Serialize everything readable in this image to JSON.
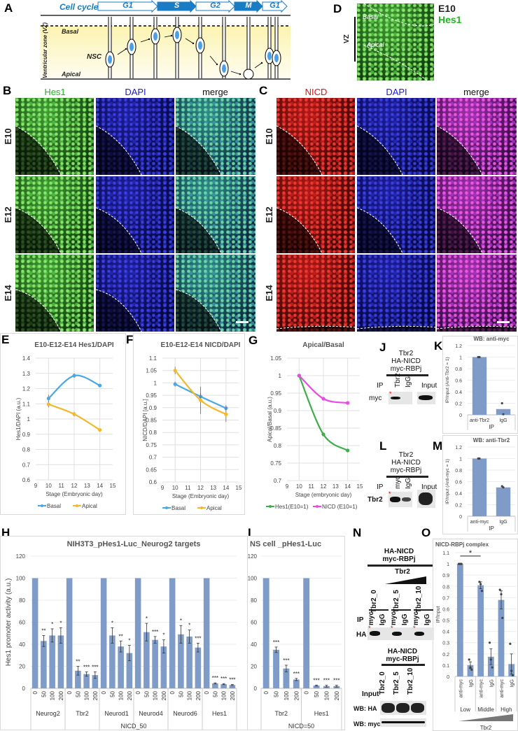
{
  "panel_labels": {
    "a": "A",
    "b": "B",
    "c": "C",
    "d": "D",
    "e": "E",
    "f": "F",
    "g": "G",
    "h": "H",
    "i": "I",
    "j": "J",
    "k": "K",
    "l": "L",
    "m": "M",
    "n": "N",
    "o": "O"
  },
  "a": {
    "cell_cycle": "Cell cycle",
    "phases": [
      "G1",
      "S",
      "G2",
      "M",
      "G1"
    ],
    "basal": "Basal",
    "apical": "Apical",
    "vz": "Ventricular zone (VZ)",
    "nsc": "NSC"
  },
  "d": {
    "vz": "VZ",
    "basal": "Basal",
    "apical": "Apical",
    "stage": "E10",
    "marker": "Hes1",
    "marker_color": "#22b422"
  },
  "b": {
    "headers": [
      "Hes1",
      "DAPI",
      "merge"
    ],
    "rows": [
      "E10",
      "E12",
      "E14"
    ],
    "header_colors": [
      "#22b422",
      "#1a1ad0",
      "#111111"
    ]
  },
  "c": {
    "headers": [
      "NICD",
      "DAPI",
      "merge"
    ],
    "rows": [
      "E10",
      "E12",
      "E14"
    ],
    "header_colors": [
      "#e01010",
      "#1a1ad0",
      "#111111"
    ]
  },
  "j": {
    "header": [
      "Tbr2",
      "HA-NICD",
      "myc-RBPj"
    ],
    "ip": "IP",
    "lanes": [
      "Tbr2",
      "IgG",
      "Input"
    ],
    "row": "myc",
    "mark": "*"
  },
  "l": {
    "header": [
      "Tbr2",
      "HA-NICD",
      "myc-RBPj"
    ],
    "ip": "IP",
    "lanes": [
      "myc",
      "IgG",
      "Input"
    ],
    "row": "Tbr2",
    "mark": "*"
  },
  "n": {
    "top_header": [
      "HA-NICD",
      "myc-RBPj"
    ],
    "gradient_label": "Tbr2",
    "conditions": [
      "Tbr2_0",
      "Tbr2_5",
      "Tbr2_10"
    ],
    "ip": "IP",
    "ip_lanes": [
      "myc",
      "IgG",
      "myc",
      "IgG",
      "myc",
      "IgG"
    ],
    "row": "HA",
    "mark": "*",
    "bottom_header": [
      "HA-NICD",
      "myc-RBPj"
    ],
    "input": "Input",
    "input_lanes": [
      "Tbr2_0",
      "Tbr2_5",
      "Tbr2_10"
    ],
    "wb_rows": [
      "WB: HA",
      "WB: myc"
    ]
  },
  "chart_data": [
    {
      "panel": "E",
      "type": "line",
      "title": "E10-E12-E14 Hes1/DAPI",
      "xlabel": "Stage (Embryonic day)",
      "ylabel": "Hes1/DAPI (a.u.)",
      "xlim": [
        9,
        15
      ],
      "ylim": [
        0.6,
        1.4
      ],
      "xticks": [
        "9",
        "10",
        "11",
        "12",
        "13",
        "14",
        "15"
      ],
      "yticks": [
        "0.6",
        "0.7",
        "0.8",
        "0.9",
        "1",
        "1.1",
        "1.2",
        "1.3",
        "1.4"
      ],
      "grid": true,
      "legend": "bottom",
      "x": [
        10,
        12,
        14
      ],
      "series": [
        {
          "name": "Basal",
          "color": "#4aa8e8",
          "values": [
            1.135,
            1.285,
            1.22
          ],
          "errors": [
            0.025,
            0.015,
            0.005
          ]
        },
        {
          "name": "Apical",
          "color": "#f2b92b",
          "values": [
            1.097,
            1.032,
            0.928
          ],
          "errors": [
            0.02,
            0.015,
            0.01
          ]
        }
      ]
    },
    {
      "panel": "F",
      "type": "line",
      "title": "E10-E12-E14 NICD/DAPI",
      "xlabel": "Stage (Embryonic day)",
      "ylabel": "NICD/DAPI [a.u.]",
      "xlim": [
        9,
        15
      ],
      "ylim": [
        0.6,
        1.1
      ],
      "xticks": [
        "9",
        "10",
        "11",
        "12",
        "13",
        "14",
        "15"
      ],
      "yticks": [
        "0.6",
        "0.65",
        "0.7",
        "0.75",
        "0.8",
        "0.85",
        "0.9",
        "0.95",
        "1",
        "1.05",
        "1.1"
      ],
      "grid": true,
      "legend": "bottom",
      "x": [
        10,
        12,
        14
      ],
      "series": [
        {
          "name": "Basal",
          "color": "#4aa8e8",
          "values": [
            0.995,
            0.945,
            0.898
          ],
          "errors": [
            0.01,
            0.015,
            0.012
          ]
        },
        {
          "name": "Apical",
          "color": "#f2b92b",
          "values": [
            1.05,
            0.93,
            0.873
          ],
          "errors": [
            0.015,
            0.055,
            0.03
          ]
        }
      ]
    },
    {
      "panel": "G",
      "type": "line",
      "title": "Apical/Basal",
      "xlabel": "Stage (embryonic day)",
      "ylabel": "Apical/Basal (a.u.)",
      "xlim": [
        9,
        15
      ],
      "ylim": [
        0.7,
        1.05
      ],
      "xticks": [
        "9",
        "10",
        "11",
        "12",
        "13",
        "14",
        "15"
      ],
      "yticks": [
        "0.7",
        "0.75",
        "0.8",
        "0.85",
        "0.9",
        "0.95",
        "1",
        "1.05"
      ],
      "grid": true,
      "legend": "bottom",
      "x": [
        10,
        12,
        14
      ],
      "series": [
        {
          "name": "Hes1(E10=1)",
          "color": "#3fae4a",
          "values": [
            1,
            0.832,
            0.786
          ]
        },
        {
          "name": "NICD (E10=1)",
          "color": "#e84ae8",
          "values": [
            1,
            0.934,
            0.922
          ]
        }
      ]
    },
    {
      "panel": "H",
      "type": "bar",
      "title": "NIH3T3_pHes1-Luc_Neurog2 targets",
      "ylabel": "Hes1 promoter activity (a.u.)",
      "xlabel": "NICD_50",
      "ylim": [
        0,
        120
      ],
      "yticks": [
        "0",
        "20",
        "40",
        "60",
        "80",
        "100",
        "120"
      ],
      "color": "#7f9cc8",
      "groups": [
        {
          "name": "Neurog2",
          "categories": [
            "0",
            "50",
            "100",
            "200"
          ],
          "values": [
            100,
            43,
            48,
            48
          ],
          "errors": [
            0,
            5,
            6,
            7
          ],
          "sig": [
            "",
            "**",
            "*",
            "*"
          ]
        },
        {
          "name": "Tbr2",
          "categories": [
            "0",
            "50",
            "100",
            "200"
          ],
          "values": [
            100,
            16,
            13,
            12
          ],
          "errors": [
            0,
            4,
            2,
            3
          ],
          "sig": [
            "",
            "**",
            "***",
            "***"
          ]
        },
        {
          "name": "Neurod1",
          "categories": [
            "0",
            "50",
            "100",
            "200"
          ],
          "values": [
            100,
            48,
            38,
            32
          ],
          "errors": [
            0,
            7,
            5,
            7
          ],
          "sig": [
            "",
            "*",
            "**",
            "*"
          ]
        },
        {
          "name": "Neurod4",
          "categories": [
            "0",
            "50",
            "100",
            "200"
          ],
          "values": [
            100,
            51,
            44,
            38
          ],
          "errors": [
            0,
            8,
            3,
            6
          ],
          "sig": [
            "",
            "*",
            "***",
            "*"
          ]
        },
        {
          "name": "Neurod6",
          "categories": [
            "0",
            "50",
            "100",
            "200"
          ],
          "values": [
            100,
            49,
            47,
            37
          ],
          "errors": [
            0,
            8,
            6,
            4
          ],
          "sig": [
            "",
            "*",
            "*",
            "***"
          ]
        },
        {
          "name": "Hes1",
          "categories": [
            "0",
            "50",
            "100",
            "200"
          ],
          "values": [
            100,
            4.5,
            3.8,
            3
          ],
          "errors": [
            0,
            0.5,
            0.5,
            0.5
          ],
          "sig": [
            "",
            "***",
            "***",
            "***"
          ]
        }
      ]
    },
    {
      "panel": "I",
      "type": "bar",
      "title": "NS cell _pHes1-Luc",
      "ylabel": "",
      "xlabel": "NICD=50",
      "ylim": [
        0,
        120
      ],
      "yticks": [
        "0",
        "20",
        "40",
        "60",
        "80",
        "100",
        "120"
      ],
      "color": "#7f9cc8",
      "groups": [
        {
          "name": "Tbr2",
          "categories": [
            "0",
            "50",
            "100",
            "200"
          ],
          "values": [
            100,
            35,
            18,
            8
          ],
          "errors": [
            0,
            2.5,
            3,
            1
          ],
          "sig": [
            "",
            "***",
            "***",
            "***"
          ]
        },
        {
          "name": "Hes1",
          "categories": [
            "0",
            "50",
            "100",
            "200"
          ],
          "values": [
            100,
            2.5,
            2,
            2
          ],
          "errors": [
            0,
            0.5,
            0.8,
            0.8
          ],
          "sig": [
            "",
            "***",
            "***",
            "***"
          ]
        }
      ]
    },
    {
      "panel": "K",
      "type": "bar",
      "title": "WB: anti-myc",
      "ylabel": "IP/Input (Anti-Tbr2 = 1)",
      "xlabel": "IP",
      "ylim": [
        0,
        1.2
      ],
      "yticks": [
        "0",
        "0.2",
        "0.4",
        "0.6",
        "0.8",
        "1",
        "1.2"
      ],
      "color": "#7f9cc8",
      "groups": [
        {
          "name": "",
          "categories": [
            "anti-Tbr2",
            "IgG"
          ],
          "values": [
            1,
            0.1
          ],
          "points": [
            [
              1,
              1
            ],
            [
              0.2,
              0.01
            ]
          ]
        }
      ]
    },
    {
      "panel": "M",
      "type": "bar",
      "title": "WB: anti-Tbr2",
      "ylabel": "IP/Input (Anti-myc = 1)",
      "xlabel": "IP",
      "ylim": [
        0,
        1.2
      ],
      "yticks": [
        "0",
        "0.2",
        "0.4",
        "0.6",
        "0.8",
        "1",
        "1.2"
      ],
      "color": "#7f9cc8",
      "groups": [
        {
          "name": "",
          "categories": [
            "anti-myc",
            "IgG"
          ],
          "values": [
            1,
            0.5
          ],
          "points": [
            [
              1,
              1
            ],
            [
              0.52,
              0.5
            ]
          ]
        }
      ]
    },
    {
      "panel": "O",
      "type": "bar",
      "title": "NICD-RBPj complex",
      "ylabel": "IP/Input",
      "xlabel": "Tbr2",
      "ylim": [
        0,
        1.1
      ],
      "yticks": [
        "0",
        "0.1",
        "0.2",
        "0.3",
        "0.4",
        "0.5",
        "0.6",
        "0.7",
        "0.8",
        "0.9",
        "1",
        "1.1"
      ],
      "color": "#7f9cc8",
      "brackets": [
        {
          "from": 0,
          "to": 2,
          "label": "*"
        }
      ],
      "groups": [
        {
          "name": "Low",
          "categories": [
            "anti-myc",
            "IgG"
          ],
          "values": [
            1,
            0.1
          ],
          "errors": [
            0,
            0.03
          ],
          "points": [
            [
              1,
              1,
              1
            ],
            [
              0.15,
              0.08,
              0.06
            ]
          ]
        },
        {
          "name": "Middle",
          "categories": [
            "anti-myc",
            "IgG"
          ],
          "values": [
            0.81,
            0.175
          ],
          "errors": [
            0.03,
            0.07
          ],
          "points": [
            [
              0.84,
              0.82,
              0.76
            ],
            [
              0.3,
              0.15,
              0.08
            ]
          ]
        },
        {
          "name": "High",
          "categories": [
            "anti-myc",
            "IgG"
          ],
          "values": [
            0.68,
            0.11
          ],
          "errors": [
            0.08,
            0.09
          ],
          "points": [
            [
              0.77,
              0.73,
              0.52
            ],
            [
              0.29,
              0.05,
              0.01
            ]
          ]
        }
      ]
    }
  ]
}
